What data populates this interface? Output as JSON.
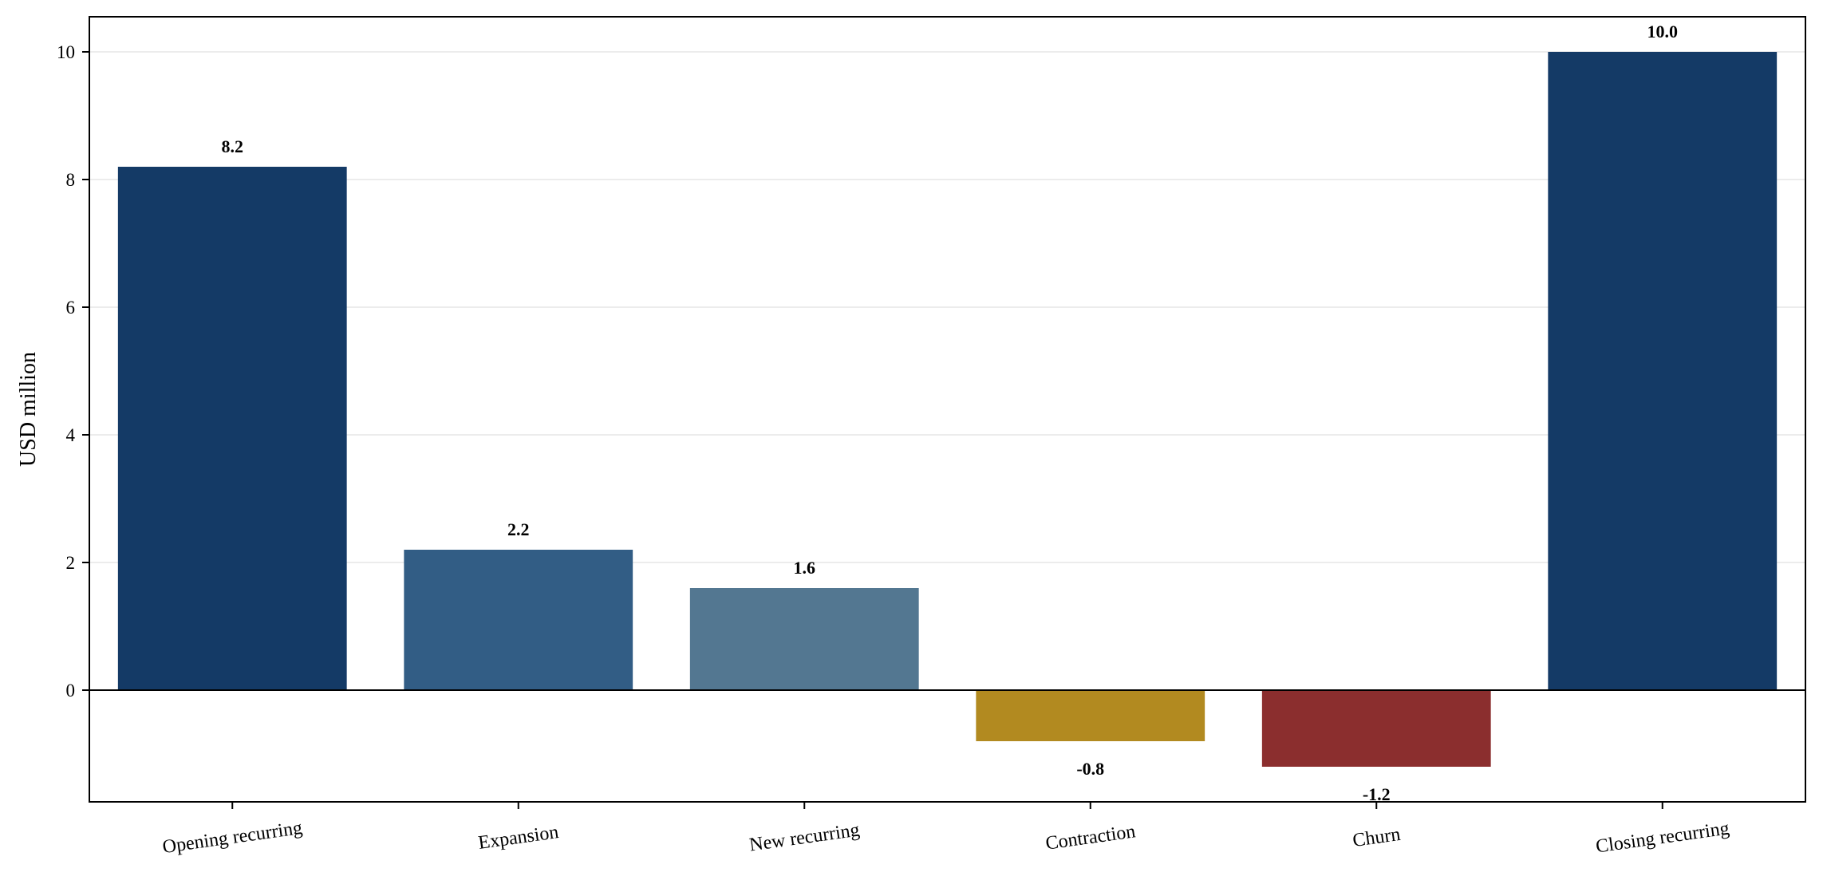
{
  "chart_data": {
    "type": "bar",
    "title": "",
    "xlabel": "",
    "ylabel": "USD million",
    "ylim": [
      -1.75,
      10.55
    ],
    "yticks": [
      0,
      2,
      4,
      6,
      8,
      10
    ],
    "grid": true,
    "categories": [
      "Opening recurring",
      "Expansion",
      "New recurring",
      "Contraction",
      "Churn",
      "Closing recurring"
    ],
    "values": [
      8.2,
      2.2,
      1.6,
      -0.8,
      -1.2,
      10.0
    ],
    "value_labels": [
      "8.2",
      "2.2",
      "1.6",
      "-0.8",
      "-1.2",
      "10.0"
    ],
    "colors": [
      "#143a66",
      "#325d85",
      "#537791",
      "#b28a20",
      "#8b2e2e",
      "#143a66"
    ]
  }
}
